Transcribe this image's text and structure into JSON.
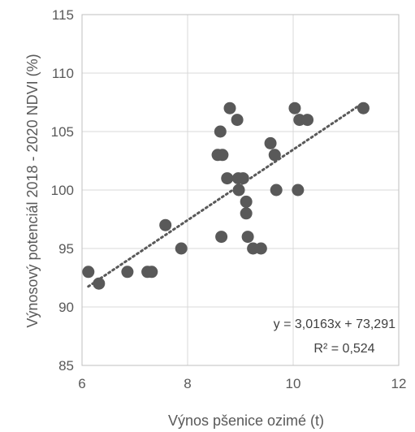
{
  "chart_data": {
    "type": "scatter",
    "xlabel": "Výnos pšenice ozimé (t)",
    "ylabel": "Výnosový potenciál 2018 - 2020 NDVI (%)",
    "xlim": [
      6,
      12
    ],
    "ylim": [
      85,
      115
    ],
    "xticks": [
      6,
      8,
      10,
      12
    ],
    "yticks": [
      85,
      90,
      95,
      100,
      105,
      110,
      115
    ],
    "tick_labels_x": [
      "6",
      "8",
      "10",
      "12"
    ],
    "tick_labels_y": [
      "85",
      "90",
      "95",
      "100",
      "105",
      "110",
      "115"
    ],
    "grid": "vertical-and-horizontal",
    "marker_color": "#595959",
    "trendline": {
      "slope": 3.0163,
      "intercept": 73.291,
      "style": "dotted",
      "color": "#595959"
    },
    "annotations": {
      "equation": "y = 3,0163x + 73,291",
      "r2": "R² = 0,524"
    },
    "points": [
      {
        "x": 6.12,
        "y": 93
      },
      {
        "x": 6.32,
        "y": 92
      },
      {
        "x": 6.86,
        "y": 93
      },
      {
        "x": 7.24,
        "y": 93
      },
      {
        "x": 7.32,
        "y": 93
      },
      {
        "x": 7.58,
        "y": 97
      },
      {
        "x": 7.88,
        "y": 95
      },
      {
        "x": 8.57,
        "y": 103
      },
      {
        "x": 8.62,
        "y": 105
      },
      {
        "x": 8.66,
        "y": 103
      },
      {
        "x": 8.64,
        "y": 96
      },
      {
        "x": 8.75,
        "y": 101
      },
      {
        "x": 8.8,
        "y": 107
      },
      {
        "x": 8.94,
        "y": 106
      },
      {
        "x": 8.96,
        "y": 101
      },
      {
        "x": 8.97,
        "y": 100
      },
      {
        "x": 9.05,
        "y": 101
      },
      {
        "x": 9.11,
        "y": 99
      },
      {
        "x": 9.11,
        "y": 98
      },
      {
        "x": 9.14,
        "y": 96
      },
      {
        "x": 9.24,
        "y": 95
      },
      {
        "x": 9.39,
        "y": 95
      },
      {
        "x": 9.57,
        "y": 104
      },
      {
        "x": 9.65,
        "y": 103
      },
      {
        "x": 9.68,
        "y": 100
      },
      {
        "x": 10.03,
        "y": 107
      },
      {
        "x": 10.09,
        "y": 100
      },
      {
        "x": 10.12,
        "y": 106
      },
      {
        "x": 10.27,
        "y": 106
      },
      {
        "x": 11.33,
        "y": 107
      }
    ]
  }
}
